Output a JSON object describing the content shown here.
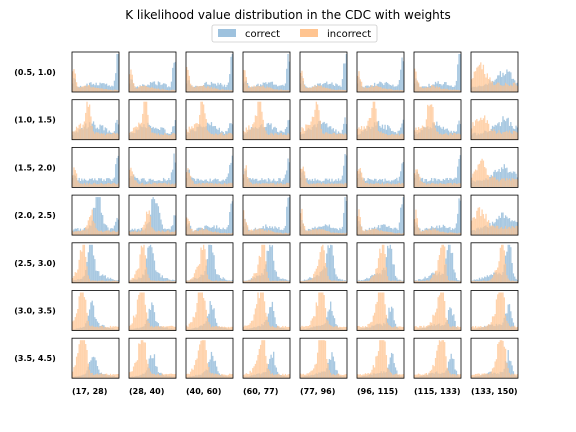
{
  "chart_data": {
    "type": "histogram-grid",
    "title": "K likelihood value distribution in the CDC with weights",
    "legend": {
      "placement": "top-center",
      "entries": [
        {
          "name": "correct",
          "color": "#9ec2de"
        },
        {
          "name": "incorrect",
          "color": "#ffc490"
        }
      ]
    },
    "row_labels": [
      "(0.5, 1.0)",
      "(1.0, 1.5)",
      "(1.5, 2.0)",
      "(2.0, 2.5)",
      "(2.5, 3.0)",
      "(3.0, 3.5)",
      "(3.5, 4.5)"
    ],
    "col_labels": [
      "(17, 28)",
      "(28, 40)",
      "(40, 60)",
      "(60, 77)",
      "(77, 96)",
      "(96, 115)",
      "(115, 133)",
      "(133, 150)"
    ],
    "axes": {
      "ticks": false,
      "grid": false
    },
    "series": [
      {
        "name": "correct",
        "color": "#9ec2de"
      },
      {
        "name": "incorrect",
        "color": "#ffc490"
      }
    ]
  }
}
